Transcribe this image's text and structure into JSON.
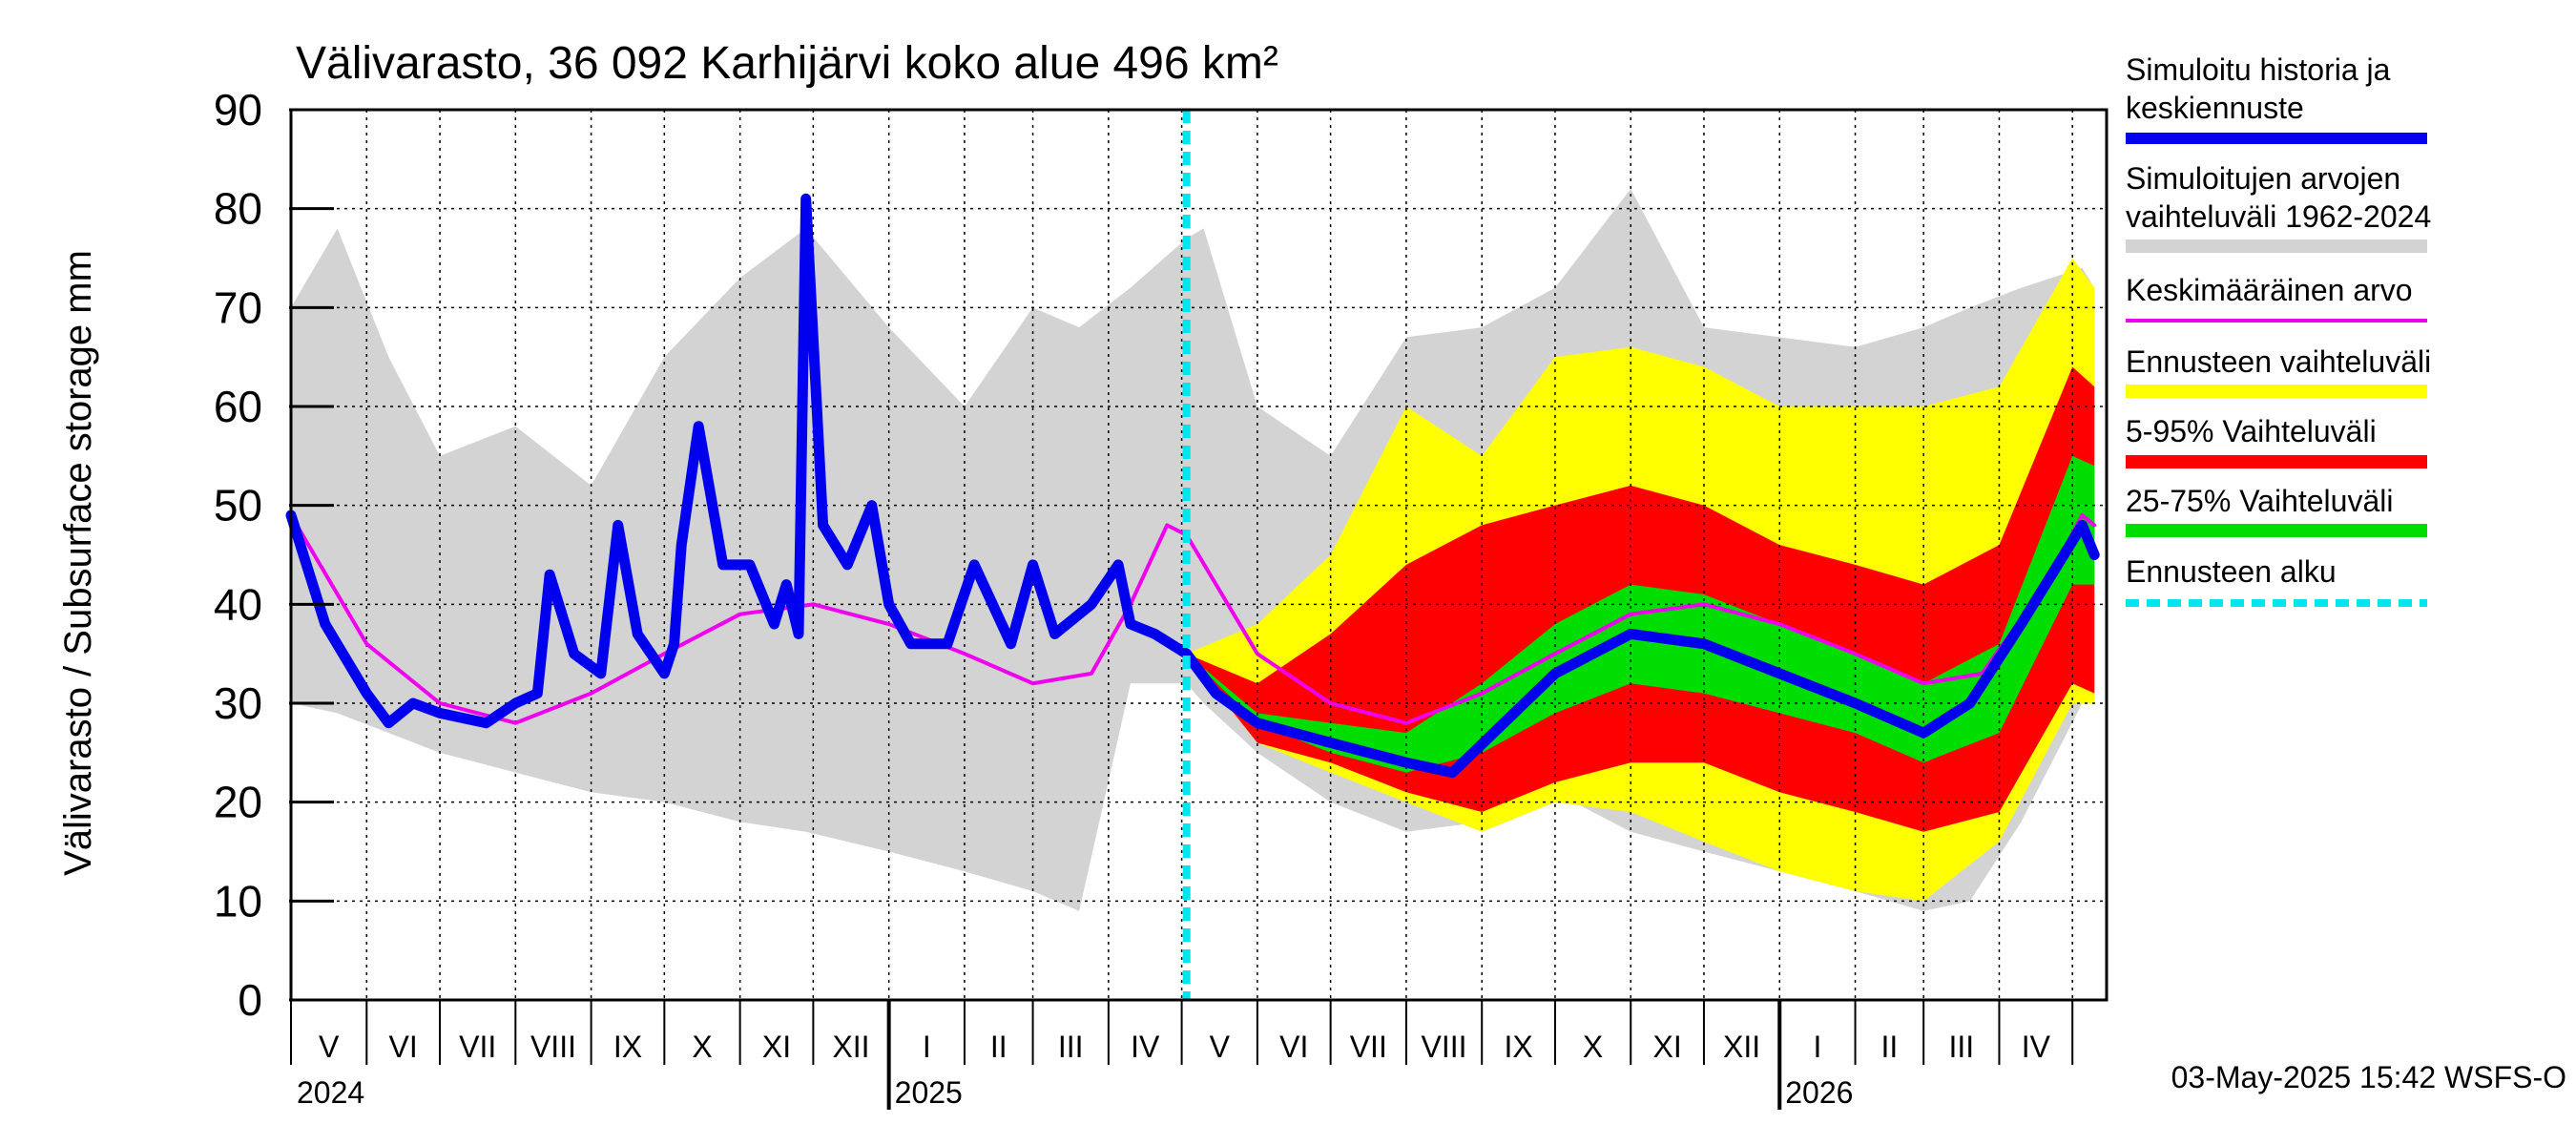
{
  "chart_data": {
    "type": "area",
    "title": "Välivarasto, 36 092 Karhijärvi koko alue 496 km²",
    "ylabel": "Välivarasto / Subsurface storage  mm",
    "xlabel": "",
    "ylim": [
      0,
      90
    ],
    "yticks": [
      0,
      10,
      20,
      30,
      40,
      50,
      60,
      70,
      80,
      90
    ],
    "x_range": [
      "2024-05-01",
      "2026-05-15"
    ],
    "grid": true,
    "legend_position": "right",
    "month_labels": [
      "V",
      "VI",
      "VII",
      "VIII",
      "IX",
      "X",
      "XI",
      "XII",
      "I",
      "II",
      "III",
      "IV",
      "V",
      "VI",
      "VII",
      "VIII",
      "IX",
      "X",
      "XI",
      "XII",
      "I",
      "II",
      "III",
      "IV"
    ],
    "year_labels": [
      "2024",
      "2025",
      "2026"
    ],
    "forecast_start": "2025-05-03",
    "footer": "03-May-2025 15:42 WSFS-O",
    "colors": {
      "simulated": "#0000ee",
      "hist_range": "#d3d3d3",
      "mean": "#ee00ee",
      "forecast_range": "#ffff00",
      "p5_95": "#ff0000",
      "p25_75": "#00dd00",
      "forecast_start": "#00e5ee"
    },
    "legend": [
      {
        "key": "simulated",
        "label": "Simuloitu historia ja keskiennuste"
      },
      {
        "key": "hist_range",
        "label": "Simuloitujen arvojen vaihteluväli 1962-2024"
      },
      {
        "key": "mean",
        "label": "Keskimääräinen arvo"
      },
      {
        "key": "forecast_range",
        "label": "Ennusteen vaihteluväli"
      },
      {
        "key": "p5_95",
        "label": "5-95% Vaihteluväli"
      },
      {
        "key": "p25_75",
        "label": "25-75% Vaihteluväli"
      },
      {
        "key": "forecast_start",
        "label": "Ennusteen alku"
      }
    ],
    "series": [
      {
        "name": "Simuloitu historia ja keskiennuste",
        "x": [
          "2024-05-01",
          "2024-05-15",
          "2024-06-01",
          "2024-06-10",
          "2024-06-20",
          "2024-07-01",
          "2024-07-20",
          "2024-08-01",
          "2024-08-10",
          "2024-08-15",
          "2024-08-25",
          "2024-09-05",
          "2024-09-12",
          "2024-09-20",
          "2024-10-01",
          "2024-10-05",
          "2024-10-08",
          "2024-10-15",
          "2024-10-25",
          "2024-11-05",
          "2024-11-15",
          "2024-11-20",
          "2024-11-25",
          "2024-11-28",
          "2024-12-05",
          "2024-12-15",
          "2024-12-25",
          "2025-01-01",
          "2025-01-10",
          "2025-01-25",
          "2025-02-05",
          "2025-02-20",
          "2025-03-01",
          "2025-03-10",
          "2025-03-25",
          "2025-04-05",
          "2025-04-10",
          "2025-04-20",
          "2025-05-03",
          "2025-05-15",
          "2025-06-01",
          "2025-07-01",
          "2025-08-01",
          "2025-08-20",
          "2025-09-10",
          "2025-10-01",
          "2025-11-01",
          "2025-12-01",
          "2026-01-01",
          "2026-02-01",
          "2026-03-01",
          "2026-03-20",
          "2026-04-10",
          "2026-04-25",
          "2026-05-05",
          "2026-05-10"
        ],
        "y": [
          49,
          38,
          31,
          28,
          30,
          29,
          28,
          30,
          31,
          43,
          35,
          33,
          48,
          37,
          33,
          36,
          46,
          58,
          44,
          44,
          38,
          42,
          37,
          81,
          48,
          44,
          50,
          40,
          36,
          36,
          44,
          36,
          44,
          37,
          40,
          44,
          38,
          37,
          35,
          31,
          28,
          26,
          24,
          23,
          28,
          33,
          37,
          36,
          33,
          30,
          27,
          30,
          38,
          44,
          48,
          45
        ]
      },
      {
        "name": "Keskimääräinen arvo",
        "x": [
          "2024-05-01",
          "2024-06-01",
          "2024-07-01",
          "2024-08-01",
          "2024-09-01",
          "2024-10-01",
          "2024-11-01",
          "2024-12-01",
          "2025-01-01",
          "2025-02-01",
          "2025-03-01",
          "2025-03-25",
          "2025-04-10",
          "2025-04-25",
          "2025-05-03",
          "2025-06-01",
          "2025-07-01",
          "2025-08-01",
          "2025-09-01",
          "2025-10-01",
          "2025-11-01",
          "2025-12-01",
          "2026-01-01",
          "2026-02-01",
          "2026-03-01",
          "2026-03-25",
          "2026-04-20",
          "2026-05-05",
          "2026-05-10"
        ],
        "y": [
          49,
          36,
          30,
          28,
          31,
          35,
          39,
          40,
          38,
          35,
          32,
          33,
          40,
          48,
          47,
          35,
          30,
          28,
          31,
          35,
          39,
          40,
          38,
          35,
          32,
          33,
          42,
          49,
          48
        ]
      }
    ],
    "bands": [
      {
        "name": "Simuloitujen arvojen vaihteluväli 1962-2024",
        "x": [
          "2024-05-01",
          "2024-05-20",
          "2024-06-10",
          "2024-07-01",
          "2024-08-01",
          "2024-09-01",
          "2024-10-01",
          "2024-11-01",
          "2024-11-28",
          "2024-12-15",
          "2025-01-01",
          "2025-02-01",
          "2025-03-01",
          "2025-03-20",
          "2025-04-10",
          "2025-05-03",
          "2025-05-10",
          "2025-06-01",
          "2025-07-01",
          "2025-08-01",
          "2025-09-01",
          "2025-10-01",
          "2025-11-01",
          "2025-12-01",
          "2026-01-01",
          "2026-02-01",
          "2026-03-01",
          "2026-03-20",
          "2026-04-10",
          "2026-05-05",
          "2026-05-10"
        ],
        "low": [
          30,
          29,
          27,
          25,
          23,
          21,
          20,
          18,
          17,
          16,
          15,
          13,
          11,
          9,
          32,
          32,
          30,
          25,
          20,
          17,
          18,
          21,
          17,
          15,
          13,
          11,
          9,
          10,
          18,
          30,
          30
        ],
        "high": [
          70,
          78,
          65,
          55,
          58,
          52,
          65,
          73,
          78,
          73,
          68,
          60,
          70,
          68,
          72,
          77,
          78,
          60,
          55,
          67,
          68,
          72,
          82,
          68,
          67,
          66,
          68,
          70,
          72,
          74,
          72
        ]
      },
      {
        "name": "Ennusteen vaihteluväli",
        "x": [
          "2025-05-03",
          "2025-06-01",
          "2025-07-01",
          "2025-08-01",
          "2025-09-01",
          "2025-10-01",
          "2025-11-01",
          "2025-12-01",
          "2026-01-01",
          "2026-02-01",
          "2026-03-01",
          "2026-04-01",
          "2026-05-01",
          "2026-05-10"
        ],
        "low": [
          35,
          26,
          23,
          20,
          17,
          20,
          19,
          16,
          13,
          11,
          10,
          16,
          30,
          30
        ],
        "high": [
          35,
          38,
          45,
          60,
          55,
          65,
          66,
          64,
          60,
          60,
          60,
          62,
          75,
          72
        ]
      },
      {
        "name": "5-95% Vaihteluväli",
        "x": [
          "2025-05-03",
          "2025-06-01",
          "2025-07-01",
          "2025-08-01",
          "2025-09-01",
          "2025-10-01",
          "2025-11-01",
          "2025-12-01",
          "2026-01-01",
          "2026-02-01",
          "2026-03-01",
          "2026-04-01",
          "2026-05-01",
          "2026-05-10"
        ],
        "low": [
          35,
          26,
          24,
          21,
          19,
          22,
          24,
          24,
          21,
          19,
          17,
          19,
          32,
          31
        ],
        "high": [
          35,
          32,
          37,
          44,
          48,
          50,
          52,
          50,
          46,
          44,
          42,
          46,
          64,
          62
        ]
      },
      {
        "name": "25-75% Vaihteluväli",
        "x": [
          "2025-05-03",
          "2025-06-01",
          "2025-07-01",
          "2025-08-01",
          "2025-09-01",
          "2025-10-01",
          "2025-11-01",
          "2025-12-01",
          "2026-01-01",
          "2026-02-01",
          "2026-03-01",
          "2026-04-01",
          "2026-05-01",
          "2026-05-10"
        ],
        "low": [
          35,
          28,
          25,
          23,
          25,
          29,
          32,
          31,
          29,
          27,
          24,
          27,
          42,
          42
        ],
        "high": [
          35,
          29,
          28,
          27,
          32,
          38,
          42,
          41,
          38,
          35,
          32,
          36,
          55,
          54
        ]
      }
    ]
  }
}
